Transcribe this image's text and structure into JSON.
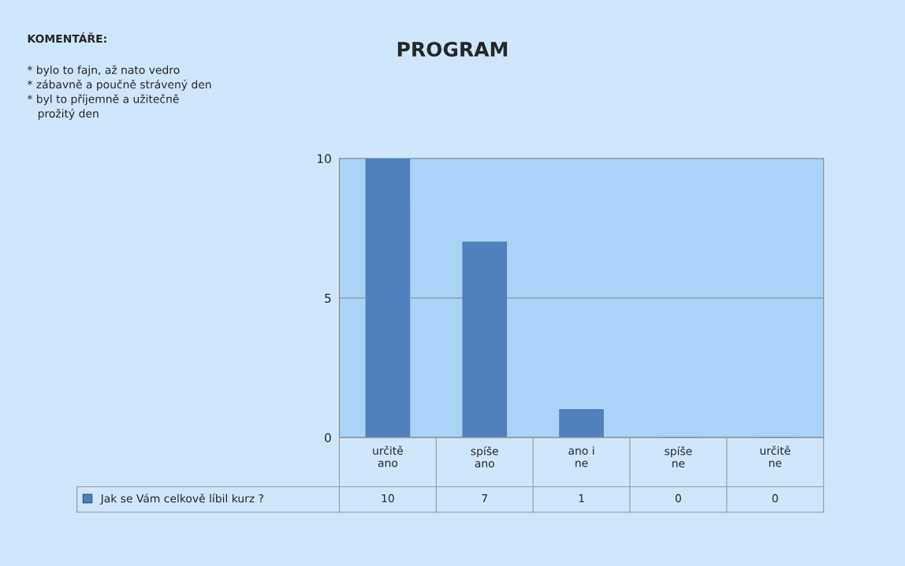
{
  "chart_data": {
    "type": "bar",
    "title": "PROGRAM",
    "categories": [
      "určitě\nano",
      "spíše\nano",
      "ano i\nne",
      "spíše\nne",
      "určitě\nne"
    ],
    "series": [
      {
        "name": "Jak se Vám celkově líbil kurz ?",
        "color": "#4f81bd",
        "values": [
          10,
          7,
          1,
          0,
          0
        ]
      }
    ],
    "ylim": [
      0,
      10
    ],
    "yticks": [
      0,
      5,
      10
    ],
    "grid": "y",
    "legend": "bottom",
    "data_labels": true,
    "annotations": [
      "KOMENTÁŘE:",
      "* bylo to fajn, až nato vedro\n* zábavně a poučně strávený den\n* byl to příjemně a užitečně\n   prožitý den"
    ]
  }
}
